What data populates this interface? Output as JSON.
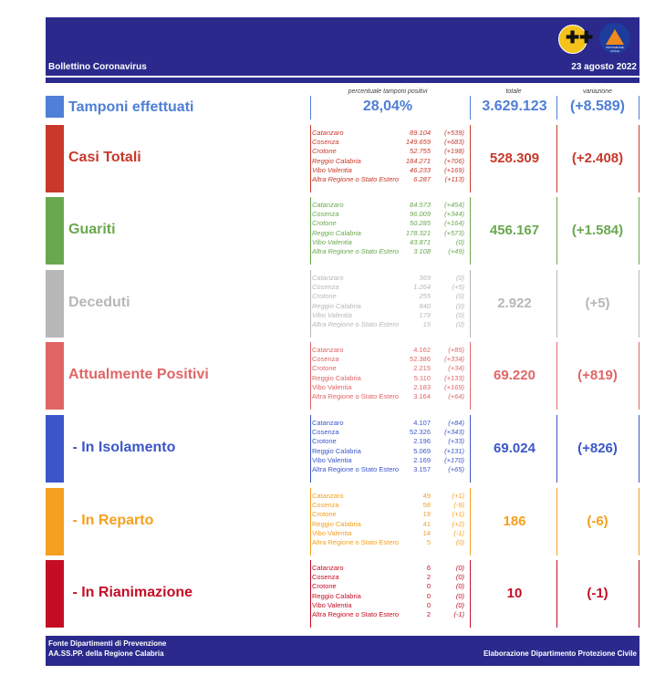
{
  "header": {
    "title": "Bollettino Coronavirus",
    "date": "23 agosto 2022",
    "logo_region_icon": "calabria-region-crest",
    "logo_pc_icon": "protezione-civile-logo",
    "logo_pc_text": "PROTEZIONE CIVILE"
  },
  "columns": {
    "pct_label": "percentuale tamponi positivi",
    "total_label": "totale",
    "var_label": "variazione"
  },
  "tamponi": {
    "label": "Tamponi effettuati",
    "pct": "28,04%",
    "total": "3.629.123",
    "variation": "(+8.589)",
    "color": "#4f7fd6"
  },
  "sections": [
    {
      "key": "casi",
      "label": "Casi Totali",
      "color": "#c8392b",
      "total": "528.309",
      "variation": "(+2.408)",
      "italic": true,
      "rows": [
        {
          "p": "Catanzaro",
          "v": "89.104",
          "d": "(+539)"
        },
        {
          "p": "Cosenza",
          "v": "149.659",
          "d": "(+683)"
        },
        {
          "p": "Crotone",
          "v": "52.755",
          "d": "(+198)"
        },
        {
          "p": "Reggio Calabria",
          "v": "184.271",
          "d": "(+706)"
        },
        {
          "p": "Vibo Valentia",
          "v": "46.233",
          "d": "(+169)"
        },
        {
          "p": "Altra Regione o Stato Estero",
          "v": "6.287",
          "d": "(+113)"
        }
      ]
    },
    {
      "key": "guariti",
      "label": "Guariti",
      "color": "#6aa84f",
      "total": "456.167",
      "variation": "(+1.584)",
      "italic": true,
      "rows": [
        {
          "p": "Catanzaro",
          "v": "84.573",
          "d": "(+454)"
        },
        {
          "p": "Cosenza",
          "v": "96.009",
          "d": "(+344)"
        },
        {
          "p": "Crotone",
          "v": "50.285",
          "d": "(+164)"
        },
        {
          "p": "Reggio Calabria",
          "v": "178.321",
          "d": "(+573)"
        },
        {
          "p": "Vibo Valentia",
          "v": "43.871",
          "d": "(0)"
        },
        {
          "p": "Altra Regione o Stato Estero",
          "v": "3.108",
          "d": "(+49)"
        }
      ]
    },
    {
      "key": "deceduti",
      "label": "Deceduti",
      "color": "#b7b7b7",
      "total": "2.922",
      "variation": "(+5)",
      "italic": true,
      "rows": [
        {
          "p": "Catanzaro",
          "v": "369",
          "d": "(0)"
        },
        {
          "p": "Cosenza",
          "v": "1.264",
          "d": "(+5)"
        },
        {
          "p": "Crotone",
          "v": "255",
          "d": "(0)"
        },
        {
          "p": "Reggio Calabria",
          "v": "840",
          "d": "(0)"
        },
        {
          "p": "Vibo Valentia",
          "v": "179",
          "d": "(0)"
        },
        {
          "p": "Altra Regione o Stato Estero",
          "v": "15",
          "d": "(0)"
        }
      ]
    },
    {
      "key": "positivi",
      "label": "Attualmente Positivi",
      "color": "#e06666",
      "total": "69.220",
      "variation": "(+819)",
      "italic": false,
      "rows": [
        {
          "p": "Catanzaro",
          "v": "4.162",
          "d": "(+85)"
        },
        {
          "p": "Cosenza",
          "v": "52.386",
          "d": "(+334)"
        },
        {
          "p": "Crotone",
          "v": "2.215",
          "d": "(+34)"
        },
        {
          "p": "Reggio Calabria",
          "v": "5.110",
          "d": "(+133)"
        },
        {
          "p": "Vibo Valentia",
          "v": "2.183",
          "d": "(+169)"
        },
        {
          "p": "Altra Regione o Stato Estero",
          "v": "3.164",
          "d": "(+64)"
        }
      ]
    },
    {
      "key": "isolamento",
      "label": " - In Isolamento",
      "color": "#3c56c9",
      "total": "69.024",
      "variation": "(+826)",
      "italic": false,
      "rows": [
        {
          "p": "Catanzaro",
          "v": "4.107",
          "d": "(+84)"
        },
        {
          "p": "Cosenza",
          "v": "52.326",
          "d": "(+343)"
        },
        {
          "p": "Crotone",
          "v": "2.196",
          "d": "(+33)"
        },
        {
          "p": "Reggio Calabria",
          "v": "5.069",
          "d": "(+131)"
        },
        {
          "p": "Vibo Valentia",
          "v": "2.169",
          "d": "(+170)"
        },
        {
          "p": "Altra Regione o Stato Estero",
          "v": "3.157",
          "d": "(+65)"
        }
      ]
    },
    {
      "key": "reparto",
      "label": " - In Reparto",
      "color": "#f4a020",
      "total": "186",
      "variation": "(-6)",
      "italic": false,
      "rows": [
        {
          "p": "Catanzaro",
          "v": "49",
          "d": "(+1)"
        },
        {
          "p": "Cosenza",
          "v": "58",
          "d": "(-9)"
        },
        {
          "p": "Crotone",
          "v": "19",
          "d": "(+1)"
        },
        {
          "p": "Reggio Calabria",
          "v": "41",
          "d": "(+2)"
        },
        {
          "p": "Vibo Valentia",
          "v": "14",
          "d": "(-1)"
        },
        {
          "p": "Altra Regione o Stato Estero",
          "v": "5",
          "d": "(0)"
        }
      ]
    },
    {
      "key": "rianimazione",
      "label": " - In Rianimazione",
      "color": "#c40d25",
      "total": "10",
      "variation": "(-1)",
      "italic": false,
      "rows": [
        {
          "p": "Catanzaro",
          "v": "6",
          "d": "(0)"
        },
        {
          "p": "Cosenza",
          "v": "2",
          "d": "(0)"
        },
        {
          "p": "Crotone",
          "v": "0",
          "d": "(0)"
        },
        {
          "p": "Reggio Calabria",
          "v": "0",
          "d": "(0)"
        },
        {
          "p": "Vibo Valentia",
          "v": "0",
          "d": "(0)"
        },
        {
          "p": "Altra Regione o Stato Estero",
          "v": "2",
          "d": "(-1)"
        }
      ]
    }
  ],
  "footer": {
    "line1": "Fonte Dipartimenti di Prevenzione",
    "line2": "AA.SS.PP.  della Regione Calabria",
    "credit": "Elaborazione Dipartimento Protezione Civile"
  }
}
